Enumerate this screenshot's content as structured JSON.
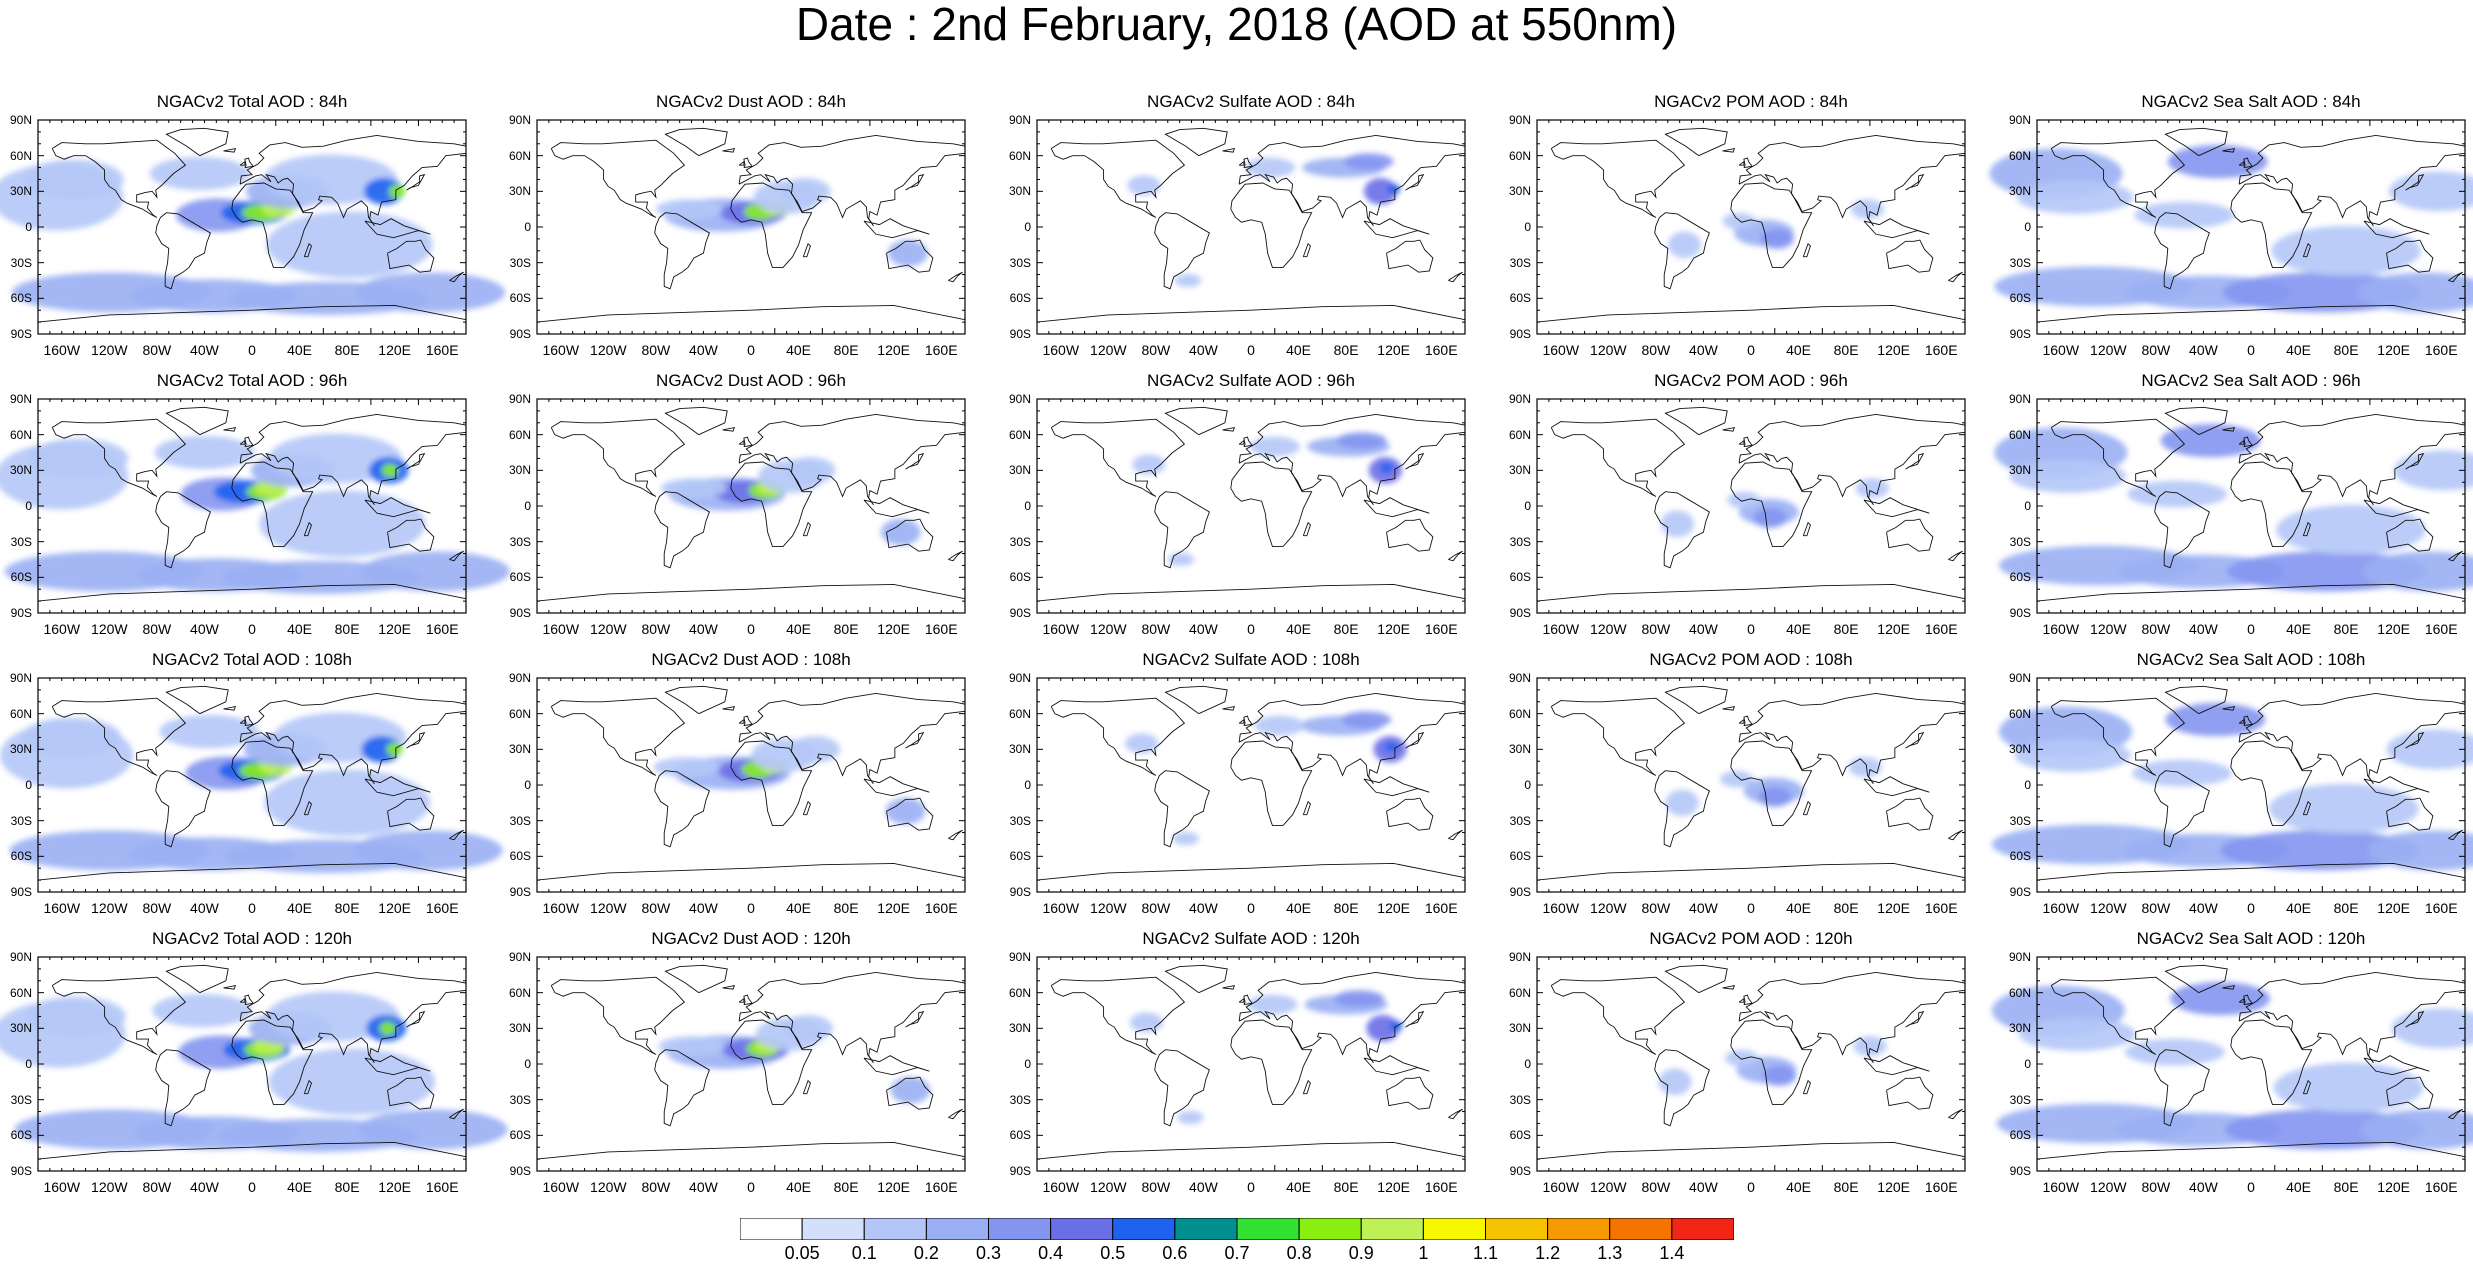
{
  "title": "Date : 2nd February, 2018 (AOD at 550nm)",
  "lat_labels": [
    "90N",
    "60N",
    "30N",
    "0",
    "30S",
    "60S",
    "90S"
  ],
  "lon_labels": [
    "160W",
    "120W",
    "80W",
    "40W",
    "0",
    "40E",
    "80E",
    "120E",
    "160E"
  ],
  "panels": [
    [
      "NGACv2 Total AOD : 84h",
      "NGACv2 Dust AOD : 84h",
      "NGACv2 Sulfate AOD : 84h",
      "NGACv2 POM AOD : 84h",
      "NGACv2 Sea Salt AOD : 84h"
    ],
    [
      "NGACv2 Total AOD : 96h",
      "NGACv2 Dust AOD : 96h",
      "NGACv2 Sulfate AOD : 96h",
      "NGACv2 POM AOD : 96h",
      "NGACv2 Sea Salt AOD : 96h"
    ],
    [
      "NGACv2 Total AOD : 108h",
      "NGACv2 Dust AOD : 108h",
      "NGACv2 Sulfate AOD : 108h",
      "NGACv2 POM AOD : 108h",
      "NGACv2 Sea Salt AOD : 108h"
    ],
    [
      "NGACv2 Total AOD : 120h",
      "NGACv2 Dust AOD : 120h",
      "NGACv2 Sulfate AOD : 120h",
      "NGACv2 POM AOD : 120h",
      "NGACv2 Sea Salt  AOD : 120h"
    ]
  ],
  "colorbar": {
    "labels": [
      "0.05",
      "0.1",
      "0.2",
      "0.3",
      "0.4",
      "0.5",
      "0.6",
      "0.7",
      "0.8",
      "0.9",
      "1",
      "1.1",
      "1.2",
      "1.3",
      "1.4"
    ],
    "colors": [
      "#ffffff",
      "#d4e0fb",
      "#b4c6f7",
      "#9aaff3",
      "#8495ef",
      "#6a6fe8",
      "#1f62f0",
      "#00908f",
      "#33e133",
      "#88ef10",
      "#bff055",
      "#f7f700",
      "#f6c300",
      "#f59a00",
      "#f57400",
      "#f32517"
    ]
  }
}
